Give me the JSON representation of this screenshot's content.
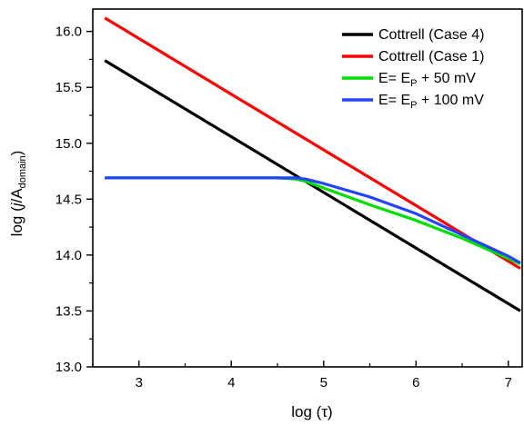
{
  "chart_data": {
    "type": "line",
    "xlabel": "log (τ)",
    "ylabel_prefix": "log (",
    "ylabel_italic": "j",
    "ylabel_mid": "/A",
    "ylabel_sub": "domain",
    "ylabel_suffix": ")",
    "xlim": [
      2.5,
      7.15
    ],
    "ylim": [
      13.0,
      16.2
    ],
    "xticks": [
      3,
      4,
      5,
      6,
      7
    ],
    "yticks": [
      13.0,
      13.5,
      14.0,
      14.5,
      15.0,
      15.5,
      16.0
    ],
    "xtick_labels": [
      "3",
      "4",
      "5",
      "6",
      "7"
    ],
    "ytick_labels": [
      "13.0",
      "13.5",
      "14.0",
      "14.5",
      "15.0",
      "15.5",
      "16.0"
    ],
    "grid": false,
    "legend_position": "top-right",
    "series": [
      {
        "name": "Cottrell (Case 4)",
        "color": "#000000",
        "x": [
          2.63,
          7.13
        ],
        "y": [
          15.74,
          13.5
        ]
      },
      {
        "name": "Cottrell (Case 1)",
        "color": "#ff0000",
        "x": [
          2.63,
          7.13
        ],
        "y": [
          16.12,
          13.88
        ]
      },
      {
        "name": "E= E",
        "name_sub": "P",
        "name_suffix": " + 50 mV",
        "color": "#00dd00",
        "x": [
          2.63,
          3.0,
          3.5,
          4.0,
          4.5,
          4.7,
          4.8,
          5.0,
          5.5,
          6.0,
          6.5,
          7.0,
          7.13
        ],
        "y": [
          14.69,
          14.69,
          14.69,
          14.69,
          14.69,
          14.68,
          14.66,
          14.6,
          14.45,
          14.31,
          14.15,
          13.97,
          13.92
        ]
      },
      {
        "name": "E= E",
        "name_sub": "P",
        "name_suffix": " + 100 mV",
        "color": "#2244ff",
        "x": [
          2.63,
          3.0,
          3.5,
          4.0,
          4.5,
          4.7,
          4.8,
          5.0,
          5.5,
          6.0,
          6.5,
          7.0,
          7.13
        ],
        "y": [
          14.69,
          14.69,
          14.69,
          14.69,
          14.69,
          14.69,
          14.68,
          14.64,
          14.52,
          14.37,
          14.18,
          13.99,
          13.93
        ]
      }
    ]
  }
}
